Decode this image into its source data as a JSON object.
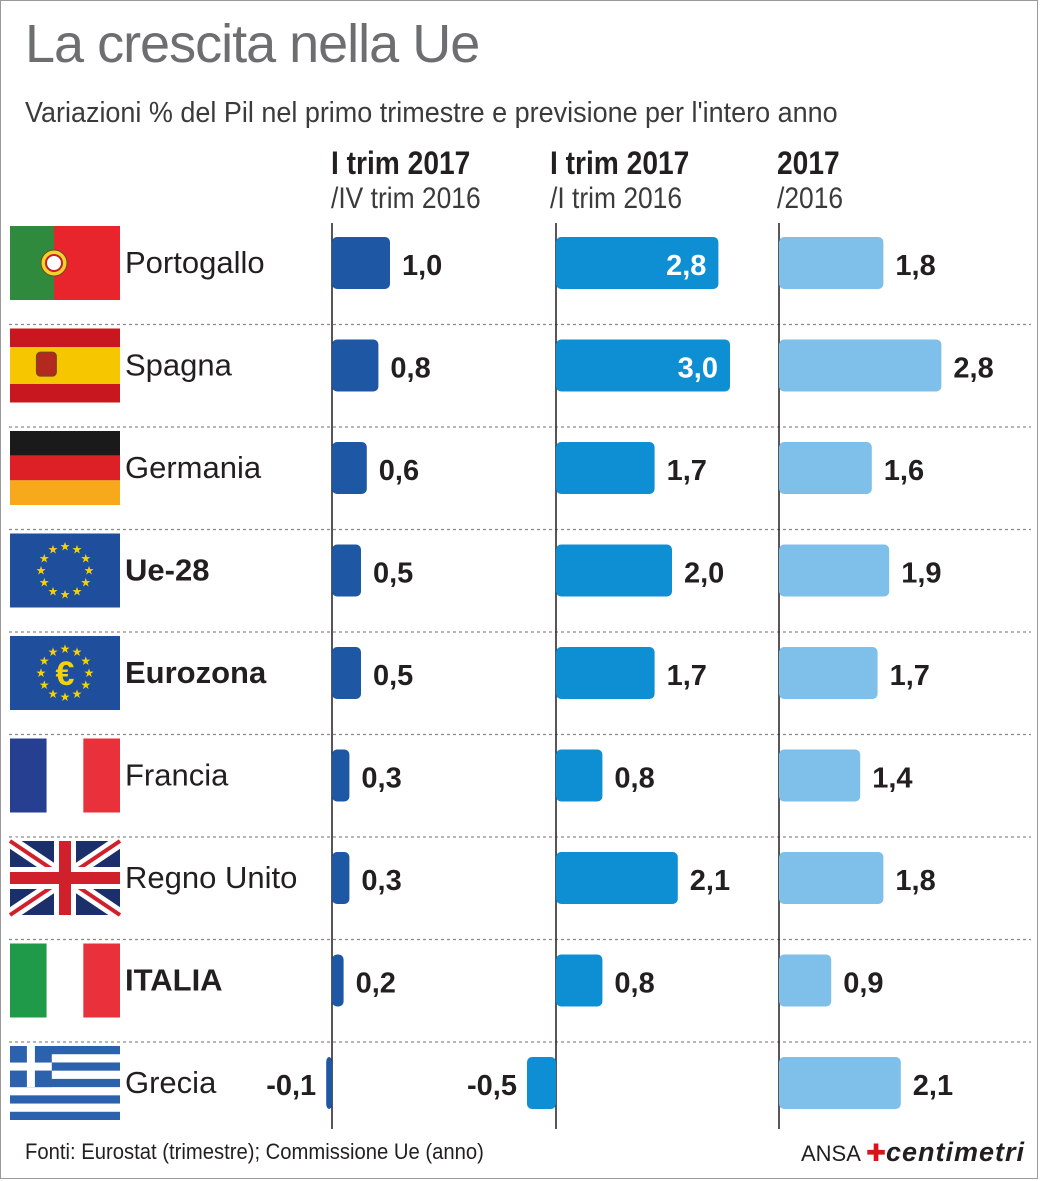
{
  "chart_data": {
    "type": "bar",
    "title": "La crescita nella Ue",
    "subtitle": "Variazioni % del Pil nel primo trimestre e previsione per l'intero anno",
    "categories": [
      "Portogallo",
      "Spagna",
      "Germania",
      "Ue-28",
      "Eurozona",
      "Francia",
      "Regno Unito",
      "ITALIA",
      "Grecia"
    ],
    "bold_categories": [
      "Ue-28",
      "Eurozona",
      "ITALIA"
    ],
    "series": [
      {
        "name": "I trim 2017 /IV trim 2016",
        "header_line1": "I trim 2017",
        "header_line2": "/IV trim 2016",
        "color": "#1e57a4",
        "values": [
          1.0,
          0.8,
          0.6,
          0.5,
          0.5,
          0.3,
          0.3,
          0.2,
          -0.1
        ],
        "labels": [
          "1,0",
          "0,8",
          "0,6",
          "0,5",
          "0,5",
          "0,3",
          "0,3",
          "0,2",
          "-0,1"
        ]
      },
      {
        "name": "I trim 2017 /I trim 2016",
        "header_line1": "I trim 2017",
        "header_line2": "/I trim 2016",
        "color": "#0f8fd3",
        "values": [
          2.8,
          3.0,
          1.7,
          2.0,
          1.7,
          0.8,
          2.1,
          0.8,
          -0.5
        ],
        "labels": [
          "2,8",
          "3,0",
          "1,7",
          "2,0",
          "1,7",
          "0,8",
          "2,1",
          "0,8",
          "-0,5"
        ]
      },
      {
        "name": "2017 /2016",
        "header_line1": "2017",
        "header_line2": "/2016",
        "color": "#7ec0ea",
        "values": [
          1.8,
          2.8,
          1.6,
          1.9,
          1.7,
          1.4,
          1.8,
          0.9,
          2.1
        ],
        "labels": [
          "1,8",
          "2,8",
          "1,6",
          "1,9",
          "1,7",
          "1,4",
          "1,8",
          "0,9",
          "2,1"
        ]
      }
    ],
    "grid": true
  },
  "footer": {
    "source": "Fonti: Eurostat (trimestre); Commissione Ue (anno)",
    "logo_left": "ANSA",
    "logo_right": "centimetri"
  }
}
